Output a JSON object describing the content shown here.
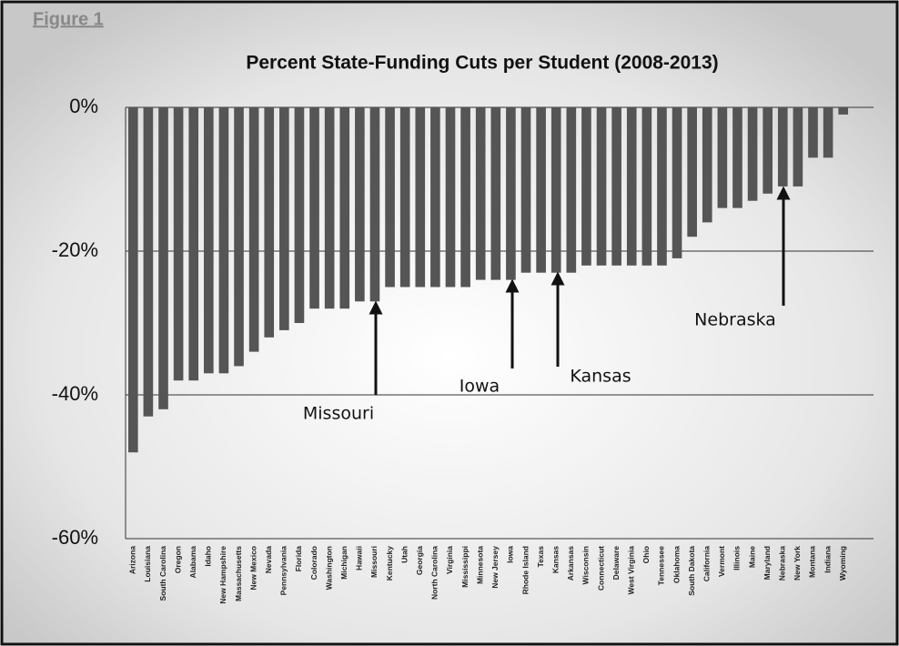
{
  "chart_data": {
    "type": "bar",
    "figure_label": "Figure 1",
    "title": "Percent State-Funding Cuts per Student (2008-2013)",
    "categories": [
      "Arizona",
      "Louisiana",
      "South Carolina",
      "Oregon",
      "Alabama",
      "Idaho",
      "New Hampshire",
      "Massachusetts",
      "New Mexico",
      "Nevada",
      "Pennsylvania",
      "Florida",
      "Colorado",
      "Washington",
      "Michigan",
      "Hawaii",
      "Missouri",
      "Kentucky",
      "Utah",
      "Georgia",
      "North Carolina",
      "Virginia",
      "Mississippi",
      "Minnesota",
      "New Jersey",
      "Iowa",
      "Rhode Island",
      "Texas",
      "Kansas",
      "Arkansas",
      "Wisconsin",
      "Connecticut",
      "Delaware",
      "West Virginia",
      "Ohio",
      "Tennessee",
      "Oklahoma",
      "South Dakota",
      "California",
      "Vermont",
      "Illinois",
      "Maine",
      "Maryland",
      "Nebraska",
      "New York",
      "Montana",
      "Indiana",
      "Wyoming"
    ],
    "values": [
      -48,
      -43,
      -42,
      -38,
      -38,
      -37,
      -37,
      -36,
      -34,
      -32,
      -31,
      -30,
      -28,
      -28,
      -28,
      -27,
      -27,
      -25,
      -25,
      -25,
      -25,
      -25,
      -25,
      -24,
      -24,
      -24,
      -23,
      -23,
      -23,
      -23,
      -22,
      -22,
      -22,
      -22,
      -22,
      -22,
      -21,
      -18,
      -16,
      -14,
      -14,
      -13,
      -12,
      -11,
      -11,
      -7,
      -7,
      -1
    ],
    "color": "#555555",
    "ylim": [
      -60,
      0
    ],
    "yticks": [
      {
        "value": 0,
        "label": "0%"
      },
      {
        "value": -20,
        "label": "-20%"
      },
      {
        "value": -40,
        "label": "-40%"
      },
      {
        "value": -60,
        "label": "-60%"
      }
    ],
    "grid": true,
    "annotations": [
      {
        "text": "Missouri"
      },
      {
        "text": "Iowa"
      },
      {
        "text": "Kansas"
      },
      {
        "text": "Nebraska"
      }
    ]
  }
}
